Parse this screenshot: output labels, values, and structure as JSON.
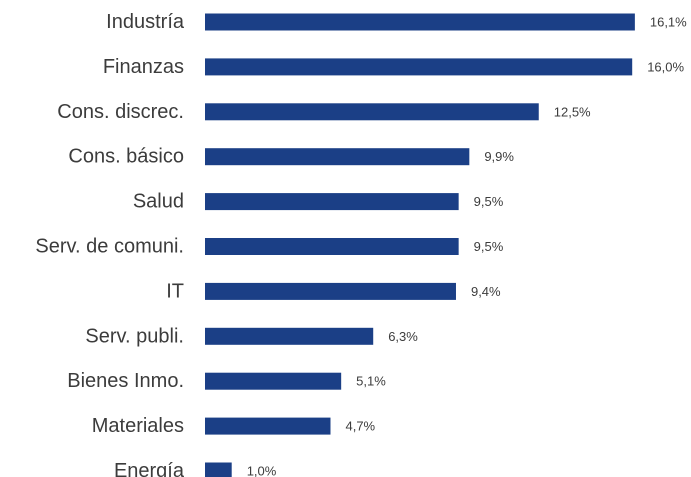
{
  "chart_data": {
    "type": "bar",
    "orientation": "horizontal",
    "categories": [
      "Industría",
      "Finanzas",
      "Cons. discrec.",
      "Cons. básico",
      "Salud",
      "Serv. de comuni.",
      "IT",
      "Serv. publi.",
      "Bienes Inmo.",
      "Materiales",
      "Energía"
    ],
    "values": [
      16.1,
      16.0,
      12.5,
      9.9,
      9.5,
      9.5,
      9.4,
      6.3,
      5.1,
      4.7,
      1.0
    ],
    "value_labels": [
      "16,1%",
      "16,0%",
      "12,5%",
      "9,9%",
      "9,5%",
      "9,5%",
      "9,4%",
      "6,3%",
      "5,1%",
      "4,7%",
      "1,0%"
    ],
    "unit": "%",
    "bar_color": "#1b3f86",
    "grid": false,
    "legend": "none"
  }
}
